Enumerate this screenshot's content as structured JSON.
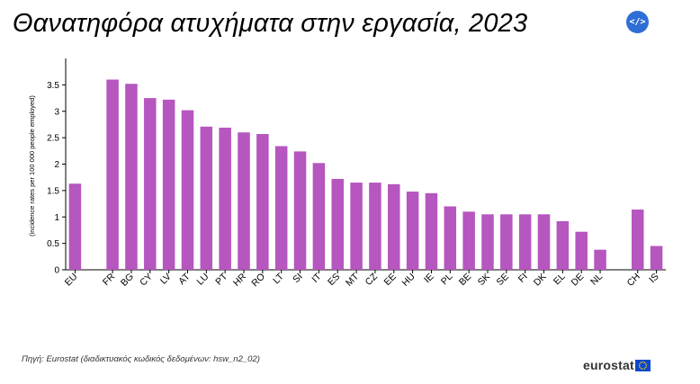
{
  "title": "Θανατηφόρα ατυχήματα στην εργασία, 2023",
  "embed_button": {
    "label": "</>",
    "icon": "code-icon"
  },
  "source": "Πηγή: Eurostat (διαδικτυακός κωδικός δεδομένων: hsw_n2_02)",
  "logo": {
    "text": "eurostat",
    "icon": "eu-flag-icon"
  },
  "colors": {
    "bar": "#b656bf",
    "axis": "#000000",
    "title": "#000000"
  },
  "chart_data": {
    "type": "bar",
    "ylabel": "(incidence rates per 100 000 people employed)",
    "xlabel": "",
    "ylim": [
      0,
      4
    ],
    "yticks": [
      0,
      0.5,
      1,
      1.5,
      2,
      2.5,
      3,
      3.5
    ],
    "ytick_labels": [
      "0",
      "0.5",
      "1",
      "1.5",
      "2",
      "2.5",
      "3",
      "3.5"
    ],
    "grid": false,
    "legend": "none",
    "categories": [
      "EU",
      "",
      "FR",
      "BG",
      "CY",
      "LV",
      "AT",
      "LU",
      "PT",
      "HR",
      "RO",
      "LT",
      "SI",
      "IT",
      "ES",
      "MT",
      "CZ",
      "EE",
      "HU",
      "IE",
      "PL",
      "BE",
      "SK",
      "SE",
      "FI",
      "DK",
      "EL",
      "DE",
      "NL",
      "",
      "CH",
      "IS"
    ],
    "values": [
      1.63,
      null,
      3.6,
      3.52,
      3.25,
      3.22,
      3.02,
      2.71,
      2.69,
      2.6,
      2.57,
      2.34,
      2.24,
      2.02,
      1.72,
      1.65,
      1.65,
      1.62,
      1.48,
      1.45,
      1.2,
      1.1,
      1.05,
      1.05,
      1.05,
      1.05,
      0.92,
      0.72,
      0.38,
      null,
      1.14,
      0.45
    ]
  }
}
